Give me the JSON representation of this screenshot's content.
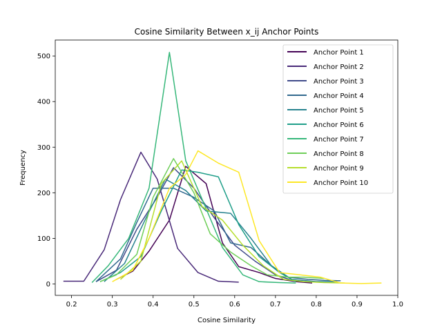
{
  "chart_data": {
    "type": "line",
    "title": "Cosine Similarity Between x_ij Anchor Points",
    "xlabel": "Cosine Similarity",
    "ylabel": "Frequency",
    "xlim": [
      0.16,
      1.0
    ],
    "ylim": [
      -25,
      535
    ],
    "xticks": [
      0.2,
      0.3,
      0.4,
      0.5,
      0.6,
      0.7,
      0.8,
      0.9,
      1.0
    ],
    "xtick_labels": [
      "0.2",
      "0.3",
      "0.4",
      "0.5",
      "0.6",
      "0.7",
      "0.8",
      "0.9",
      "1.0"
    ],
    "yticks": [
      0,
      100,
      200,
      300,
      400,
      500
    ],
    "ytick_labels": [
      "0",
      "100",
      "200",
      "300",
      "400",
      "500"
    ],
    "grid": false,
    "legend_position": "top-right",
    "series": [
      {
        "name": "Anchor Point 1",
        "color": "#440154",
        "x": [
          0.31,
          0.35,
          0.39,
          0.44,
          0.48,
          0.53,
          0.57,
          0.61,
          0.66,
          0.7,
          0.75,
          0.79
        ],
        "y": [
          10,
          28,
          72,
          140,
          258,
          220,
          90,
          38,
          25,
          12,
          5,
          2
        ]
      },
      {
        "name": "Anchor Point 2",
        "color": "#482878",
        "x": [
          0.18,
          0.23,
          0.28,
          0.32,
          0.37,
          0.41,
          0.46,
          0.51,
          0.56,
          0.61
        ],
        "y": [
          6,
          6,
          75,
          185,
          289,
          230,
          78,
          25,
          6,
          4
        ]
      },
      {
        "name": "Anchor Point 3",
        "color": "#3e4989",
        "x": [
          0.26,
          0.31,
          0.36,
          0.41,
          0.45,
          0.5,
          0.55,
          0.6,
          0.65,
          0.7,
          0.75
        ],
        "y": [
          5,
          30,
          120,
          190,
          255,
          210,
          145,
          85,
          50,
          20,
          5
        ]
      },
      {
        "name": "Anchor Point 4",
        "color": "#31688e",
        "x": [
          0.26,
          0.32,
          0.36,
          0.4,
          0.45,
          0.5,
          0.55,
          0.59,
          0.64,
          0.69,
          0.73,
          0.78,
          0.82,
          0.86
        ],
        "y": [
          5,
          55,
          135,
          210,
          210,
          190,
          160,
          90,
          80,
          40,
          15,
          10,
          8,
          7
        ]
      },
      {
        "name": "Anchor Point 5",
        "color": "#26828e",
        "x": [
          0.28,
          0.33,
          0.38,
          0.43,
          0.48,
          0.53,
          0.59,
          0.64,
          0.69,
          0.74,
          0.8,
          0.85
        ],
        "y": [
          5,
          45,
          140,
          230,
          205,
          160,
          155,
          100,
          40,
          10,
          5,
          5
        ]
      },
      {
        "name": "Anchor Point 6",
        "color": "#1f9e89",
        "x": [
          0.27,
          0.32,
          0.37,
          0.42,
          0.47,
          0.51,
          0.56,
          0.61,
          0.66,
          0.71,
          0.75
        ],
        "y": [
          5,
          25,
          60,
          160,
          250,
          245,
          235,
          130,
          60,
          25,
          5
        ]
      },
      {
        "name": "Anchor Point 7",
        "color": "#35b779",
        "x": [
          0.25,
          0.29,
          0.34,
          0.39,
          0.44,
          0.48,
          0.53,
          0.57,
          0.62,
          0.66,
          0.71,
          0.75
        ],
        "y": [
          3,
          40,
          100,
          210,
          508,
          270,
          165,
          80,
          20,
          5,
          3,
          2
        ]
      },
      {
        "name": "Anchor Point 8",
        "color": "#6ece58",
        "x": [
          0.27,
          0.31,
          0.36,
          0.4,
          0.45,
          0.5,
          0.54,
          0.59,
          0.64,
          0.68,
          0.73,
          0.77,
          0.82
        ],
        "y": [
          5,
          20,
          65,
          190,
          275,
          200,
          110,
          70,
          40,
          20,
          15,
          15,
          12
        ]
      },
      {
        "name": "Anchor Point 9",
        "color": "#b5de2b",
        "x": [
          0.32,
          0.37,
          0.42,
          0.47,
          0.52,
          0.57,
          0.62,
          0.67,
          0.72,
          0.77,
          0.82,
          0.87
        ],
        "y": [
          10,
          50,
          220,
          270,
          170,
          140,
          85,
          40,
          10,
          5,
          3,
          2
        ]
      },
      {
        "name": "Anchor Point 10",
        "color": "#fde725",
        "x": [
          0.3,
          0.35,
          0.39,
          0.44,
          0.48,
          0.51,
          0.56,
          0.61,
          0.66,
          0.71,
          0.76,
          0.81,
          0.86,
          0.91,
          0.96
        ],
        "y": [
          5,
          30,
          100,
          210,
          240,
          292,
          265,
          245,
          95,
          25,
          20,
          15,
          2,
          1,
          2
        ]
      }
    ]
  }
}
